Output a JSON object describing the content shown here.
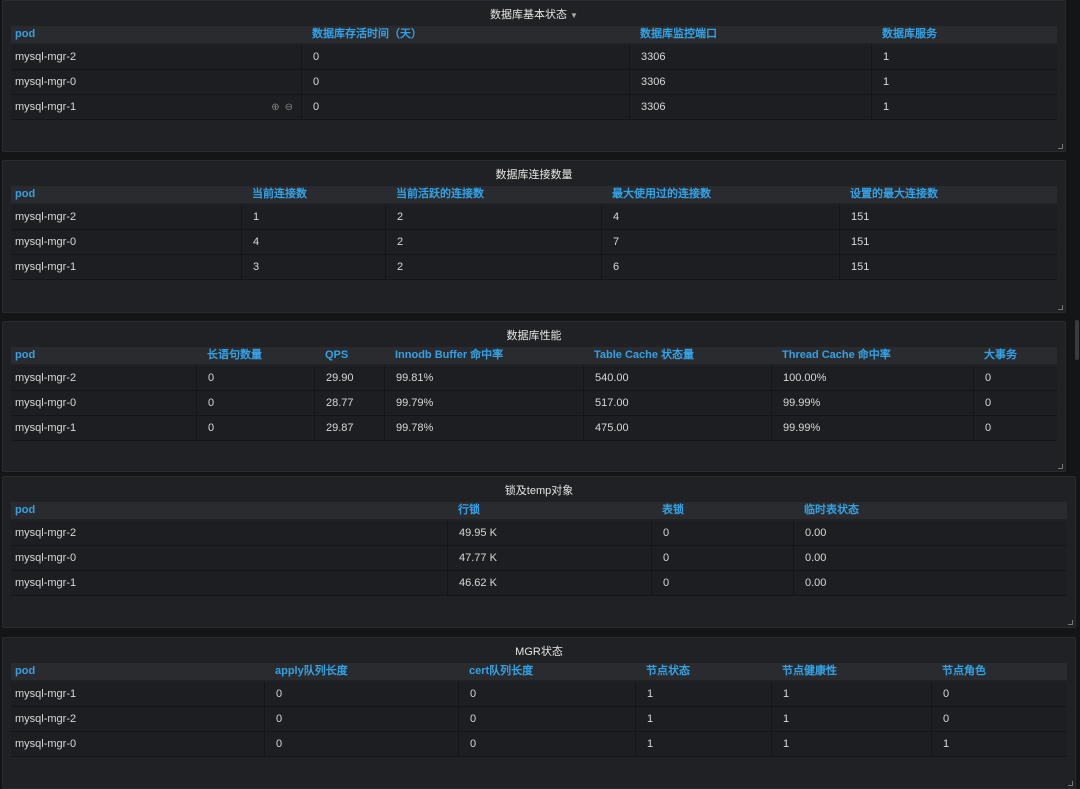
{
  "panels": [
    {
      "title": "数据库基本状态",
      "has_menu": true,
      "columns": [
        "pod",
        "数据库存活时间（天）",
        "数据库监控端口",
        "数据库服务"
      ],
      "rows": [
        [
          "mysql-mgr-2",
          "0",
          "3306",
          "1"
        ],
        [
          "mysql-mgr-0",
          "0",
          "3306",
          "1"
        ],
        [
          "mysql-mgr-1",
          "0",
          "3306",
          "1"
        ]
      ],
      "hover_row": 2,
      "hover_icons": [
        "zoom-in-icon",
        "zoom-out-icon"
      ]
    },
    {
      "title": "数据库连接数量",
      "columns": [
        "pod",
        "当前连接数",
        "当前活跃的连接数",
        "最大使用过的连接数",
        "设置的最大连接数"
      ],
      "rows": [
        [
          "mysql-mgr-2",
          "1",
          "2",
          "4",
          "151"
        ],
        [
          "mysql-mgr-0",
          "4",
          "2",
          "7",
          "151"
        ],
        [
          "mysql-mgr-1",
          "3",
          "2",
          "6",
          "151"
        ]
      ]
    },
    {
      "title": "数据库性能",
      "columns": [
        "pod",
        "长语句数量",
        "QPS",
        "Innodb Buffer 命中率",
        "Table Cache 状态量",
        "Thread Cache 命中率",
        "大事务"
      ],
      "rows": [
        [
          "mysql-mgr-2",
          "0",
          "29.90",
          "99.81%",
          "540.00",
          "100.00%",
          "0"
        ],
        [
          "mysql-mgr-0",
          "0",
          "28.77",
          "99.79%",
          "517.00",
          "99.99%",
          "0"
        ],
        [
          "mysql-mgr-1",
          "0",
          "29.87",
          "99.78%",
          "475.00",
          "99.99%",
          "0"
        ]
      ]
    },
    {
      "title": "锁及temp对象",
      "columns": [
        "pod",
        "行锁",
        "表锁",
        "临时表状态"
      ],
      "rows": [
        [
          "mysql-mgr-2",
          "49.95 K",
          "0",
          "0.00"
        ],
        [
          "mysql-mgr-0",
          "47.77 K",
          "0",
          "0.00"
        ],
        [
          "mysql-mgr-1",
          "46.62 K",
          "0",
          "0.00"
        ]
      ]
    },
    {
      "title": "MGR状态",
      "columns": [
        "pod",
        "apply队列长度",
        "cert队列长度",
        "节点状态",
        "节点健康性",
        "节点角色"
      ],
      "rows": [
        [
          "mysql-mgr-1",
          "0",
          "0",
          "1",
          "1",
          "0"
        ],
        [
          "mysql-mgr-2",
          "0",
          "0",
          "1",
          "1",
          "0"
        ],
        [
          "mysql-mgr-0",
          "0",
          "0",
          "1",
          "1",
          "1"
        ]
      ]
    }
  ],
  "colors": {
    "background": "#141517",
    "panel": "#202124",
    "header_text": "#33a2e5",
    "text": "#d8d9da"
  }
}
